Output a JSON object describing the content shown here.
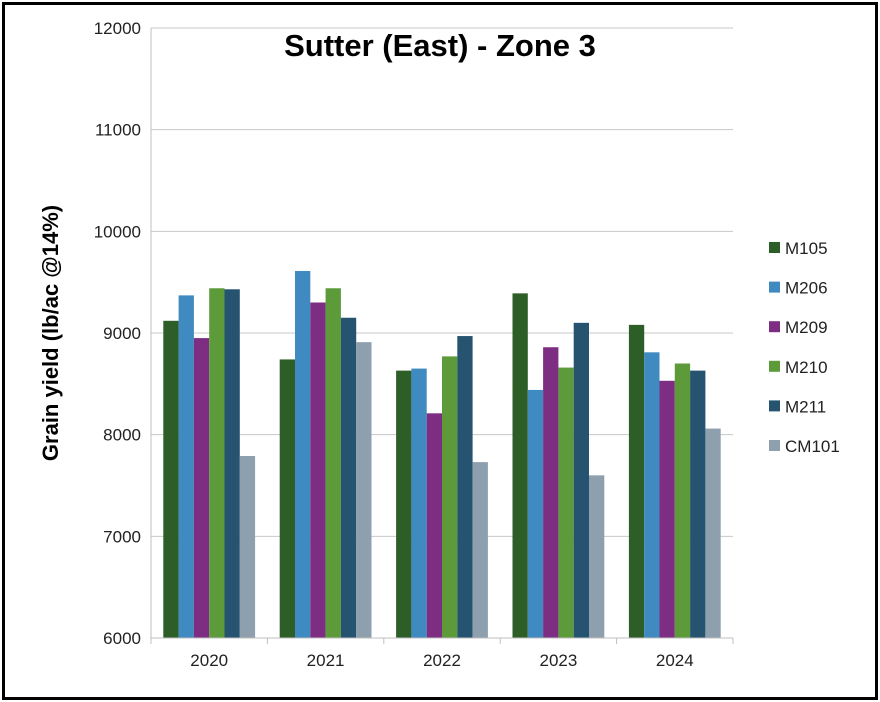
{
  "chart_data": {
    "type": "bar",
    "title": "Sutter (East) - Zone 3",
    "ylabel": "Grain yield (lb/ac @14%)",
    "xlabel": "",
    "categories": [
      "2020",
      "2021",
      "2022",
      "2023",
      "2024"
    ],
    "ylim": [
      6000,
      12000
    ],
    "yticks": [
      6000,
      7000,
      8000,
      9000,
      10000,
      11000,
      12000
    ],
    "ytick_labels": [
      "6000",
      "7000",
      "8000",
      "9000",
      "10000",
      "11000",
      "12000"
    ],
    "grid": true,
    "legend_position": "right",
    "series": [
      {
        "name": "M105",
        "color": "#2e5e27",
        "values": [
          9120,
          8740,
          8630,
          9390,
          9080
        ]
      },
      {
        "name": "M206",
        "color": "#3f8ac0",
        "values": [
          9370,
          9610,
          8650,
          8440,
          8810
        ]
      },
      {
        "name": "M209",
        "color": "#7d2e83",
        "values": [
          8950,
          9300,
          8210,
          8860,
          8530
        ]
      },
      {
        "name": "M210",
        "color": "#5c9a3a",
        "values": [
          9440,
          9440,
          8770,
          8660,
          8700
        ]
      },
      {
        "name": "M211",
        "color": "#265470",
        "values": [
          9430,
          9150,
          8970,
          9100,
          8630
        ]
      },
      {
        "name": "CM101",
        "color": "#8e9fae",
        "values": [
          7790,
          8910,
          7730,
          7600,
          8060
        ]
      }
    ]
  }
}
